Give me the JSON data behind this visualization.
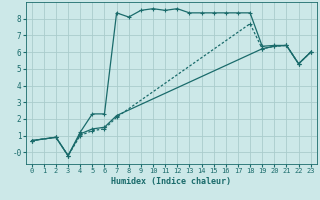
{
  "xlabel": "Humidex (Indice chaleur)",
  "background_color": "#cce8e8",
  "grid_color": "#aacccc",
  "line_color": "#1a6b6b",
  "xlim": [
    -0.5,
    23.5
  ],
  "ylim": [
    -0.7,
    9.0
  ],
  "xticks": [
    0,
    1,
    2,
    3,
    4,
    5,
    6,
    7,
    8,
    9,
    10,
    11,
    12,
    13,
    14,
    15,
    16,
    17,
    18,
    19,
    20,
    21,
    22,
    23
  ],
  "yticks": [
    0,
    1,
    2,
    3,
    4,
    5,
    6,
    7,
    8
  ],
  "ytick_labels": [
    "-0",
    "1",
    "2",
    "3",
    "4",
    "5",
    "6",
    "7",
    "8"
  ],
  "line1_x": [
    0,
    2,
    3,
    4,
    5,
    6,
    7,
    8,
    9,
    10,
    11,
    12,
    13,
    14,
    15,
    16,
    17,
    18,
    19,
    20,
    21,
    22,
    23
  ],
  "line1_y": [
    0.7,
    0.9,
    -0.2,
    1.2,
    2.3,
    2.3,
    8.35,
    8.1,
    8.5,
    8.6,
    8.5,
    8.6,
    8.35,
    8.35,
    8.35,
    8.35,
    8.35,
    8.35,
    6.35,
    6.4,
    6.4,
    5.3,
    6.0
  ],
  "line2_x": [
    0,
    2,
    3,
    4,
    5,
    6,
    7,
    19,
    20,
    21,
    22,
    23
  ],
  "line2_y": [
    0.7,
    0.9,
    -0.2,
    1.1,
    1.4,
    1.5,
    2.2,
    6.2,
    6.35,
    6.4,
    5.3,
    6.0
  ],
  "line3_x": [
    0,
    2,
    3,
    4,
    5,
    6,
    7,
    18,
    19,
    20,
    21,
    22,
    23
  ],
  "line3_y": [
    0.7,
    0.9,
    -0.2,
    1.0,
    1.3,
    1.4,
    2.1,
    7.7,
    6.2,
    6.35,
    6.4,
    5.3,
    6.0
  ]
}
